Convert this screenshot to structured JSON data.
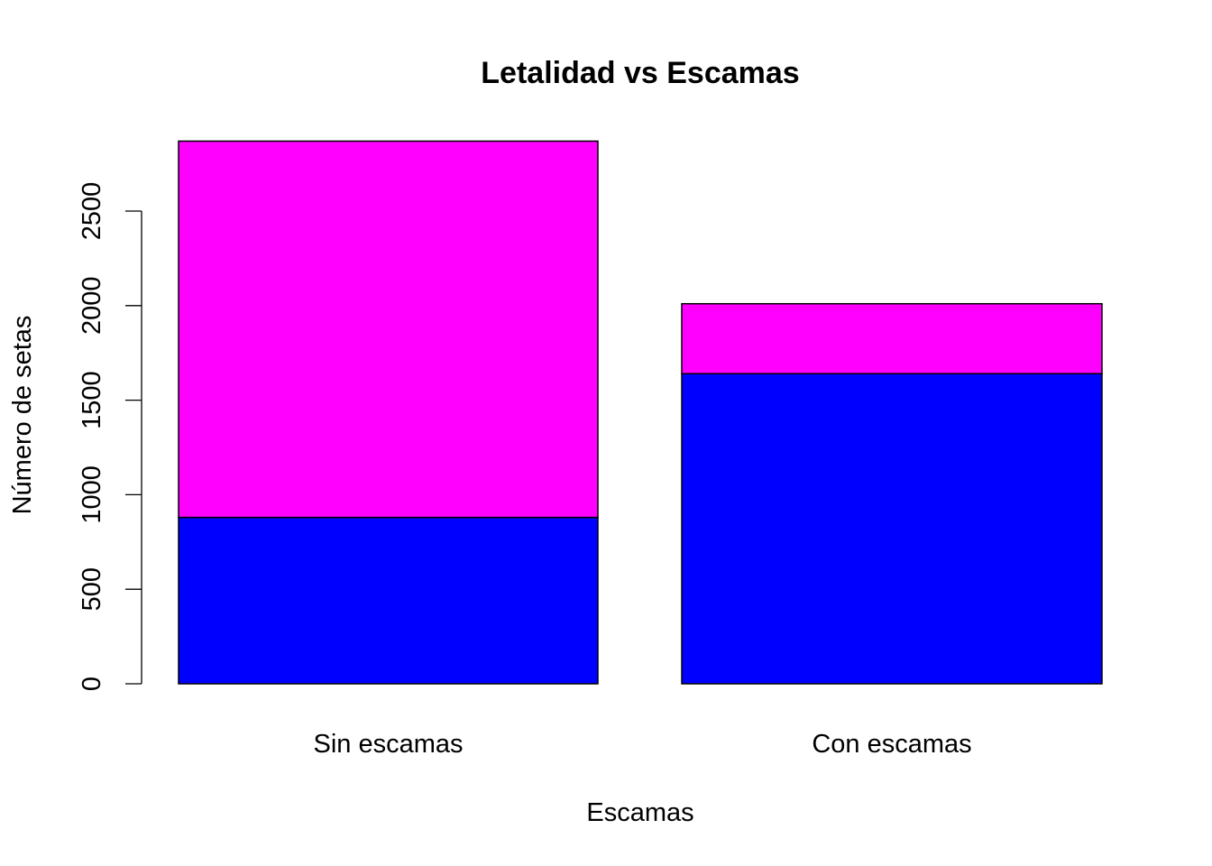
{
  "chart_data": {
    "type": "bar",
    "stacked": true,
    "title": "Letalidad vs Escamas",
    "xlabel": "Escamas",
    "ylabel": "Número de setas",
    "categories": [
      "Sin escamas",
      "Con escamas"
    ],
    "series": [
      {
        "values": [
          880,
          1640
        ],
        "color": "#0000FF"
      },
      {
        "values": [
          1990,
          370
        ],
        "color": "#FF00FF"
      }
    ],
    "yticks": [
      0,
      500,
      1000,
      1500,
      2000,
      2500
    ],
    "ylim": [
      0,
      2870
    ],
    "grid": false,
    "legend": "none"
  }
}
